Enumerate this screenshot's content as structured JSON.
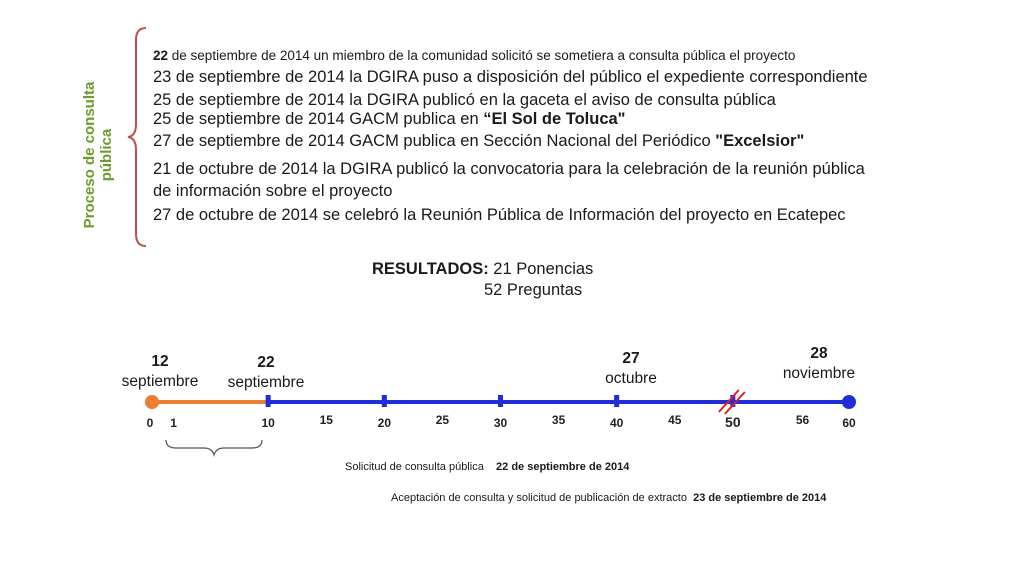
{
  "side_label": {
    "line1": "Proceso de consulta",
    "line2": "pública"
  },
  "events": [
    {
      "pre_bold": "22",
      "text": " de septiembre  de 2014 un miembro de la comunidad solicitó se sometiera a consulta pública el proyecto",
      "bold": "",
      "tail": ""
    },
    {
      "pre_bold": "",
      "text": "23 de septiembre de 2014 la DGIRA puso a disposición del público el expediente correspondiente",
      "bold": "",
      "tail": ""
    },
    {
      "pre_bold": "",
      "text": "25 de septiembre de 2014 la DGIRA publicó en la gaceta el aviso de consulta pública",
      "bold": "",
      "tail": ""
    },
    {
      "pre_bold": "",
      "text": "25 de septiembre de 2014  GACM publica en ",
      "bold": "“El Sol de Toluca\"",
      "tail": ""
    },
    {
      "pre_bold": "",
      "text": "27  de septiembre de 2014 GACM publica en Sección Nacional del Periódico ",
      "bold": "\"Excelsior\"",
      "tail": ""
    },
    {
      "pre_bold": "",
      "text": "21 de octubre de 2014 la DGIRA publicó la convocatoria para la celebración de la reunión pública",
      "bold": "",
      "tail": ""
    },
    {
      "pre_bold": "",
      "text": "de información sobre el proyecto",
      "bold": "",
      "tail": ""
    },
    {
      "pre_bold": "",
      "text": "27 de octubre de 2014 se celebró la Reunión Pública de Información del proyecto en Ecatepec",
      "bold": "",
      "tail": ""
    }
  ],
  "results": {
    "label": "RESULTADOS:",
    "line1": " 21 Ponencias",
    "line2": "52 Preguntas"
  },
  "timeline": {
    "min": 0,
    "max": 60,
    "tick_labels": [
      "0",
      "1",
      "10",
      "15",
      "20",
      "25",
      "30",
      "35",
      "40",
      "45",
      "50",
      "56",
      "60"
    ],
    "tick_values": [
      0,
      1,
      10,
      15,
      20,
      25,
      30,
      35,
      40,
      45,
      50,
      56,
      60
    ],
    "marks": [
      {
        "day": "12",
        "month": "septiembre",
        "value": 0
      },
      {
        "day": "22",
        "month": "septiembre",
        "value": 10
      },
      {
        "day": "27",
        "month": "octubre",
        "value": 40
      },
      {
        "day": "28",
        "month": "noviembre",
        "value": 60
      }
    ],
    "colors": {
      "orange": "#ed7d31",
      "blue": "#1f2ed6",
      "red": "#e02020"
    }
  },
  "footnotes": [
    {
      "text": "Solicitud de consulta pública",
      "bold": "22 de septiembre  de 2014"
    },
    {
      "text": "Aceptación de  consulta y solicitud de publicación de extracto",
      "bold": "23 de septiembre de 2014"
    }
  ]
}
